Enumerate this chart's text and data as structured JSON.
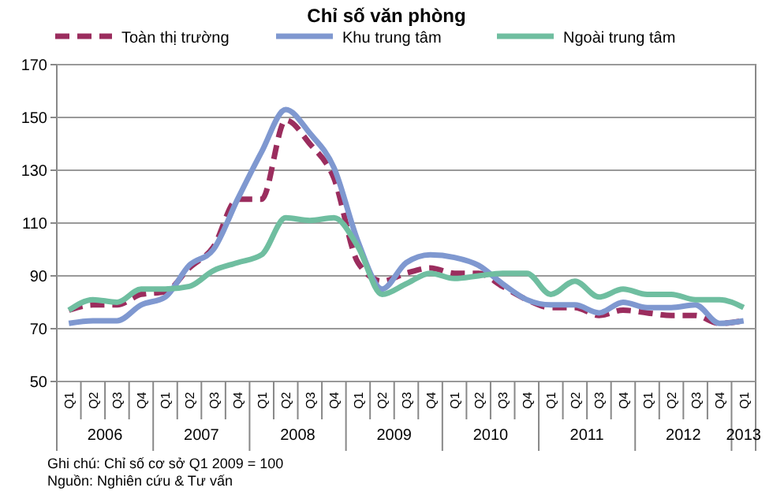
{
  "chart_data": {
    "type": "line",
    "title": "Chỉ số văn phòng",
    "categories": [
      "Q1",
      "Q2",
      "Q3",
      "Q4",
      "Q1",
      "Q2",
      "Q3",
      "Q4",
      "Q1",
      "Q2",
      "Q3",
      "Q4",
      "Q1",
      "Q2",
      "Q3",
      "Q4",
      "Q1",
      "Q2",
      "Q3",
      "Q4",
      "Q1",
      "Q2",
      "Q3",
      "Q4",
      "Q1",
      "Q2",
      "Q3",
      "Q4",
      "Q1"
    ],
    "series": [
      {
        "name": "Toàn thị trường",
        "color": "#9b2d5e",
        "line_style": "dashed",
        "values": [
          77,
          79,
          79,
          83,
          84,
          93,
          101,
          119,
          119,
          149,
          140,
          127,
          95,
          88,
          91,
          93,
          91,
          91,
          86,
          81,
          78,
          78,
          75,
          77,
          76,
          75,
          75,
          72,
          73
        ]
      },
      {
        "name": "Khu trung tâm",
        "color": "#7f98d0",
        "line_style": "solid",
        "values": [
          72,
          73,
          73,
          79,
          82,
          94,
          100,
          119,
          137,
          153,
          144,
          131,
          103,
          85,
          95,
          98,
          97,
          94,
          87,
          81,
          79,
          79,
          76,
          80,
          78,
          78,
          79,
          72,
          73
        ]
      },
      {
        "name": "Ngoài trung tâm",
        "color": "#6fbea0",
        "line_style": "solid",
        "values": [
          77,
          81,
          80,
          85,
          85,
          86,
          92,
          95,
          98,
          112,
          111,
          112,
          101,
          83,
          87,
          91,
          89,
          90,
          91,
          91,
          83,
          88,
          82,
          85,
          83,
          83,
          81,
          81,
          78
        ]
      }
    ],
    "ylim": [
      50,
      170
    ],
    "yticks": [
      50,
      70,
      90,
      110,
      130,
      150,
      170
    ],
    "grid": "y",
    "legend": "top",
    "marker": "none",
    "annotations": [
      "2006",
      "2007",
      "2008",
      "2009",
      "2010",
      "2011",
      "2012",
      "2013",
      "Ghi chú: Chỉ số cơ sở Q1 2009 = 100",
      "Nguồn: Nghiên cứu & Tư vấn"
    ]
  }
}
